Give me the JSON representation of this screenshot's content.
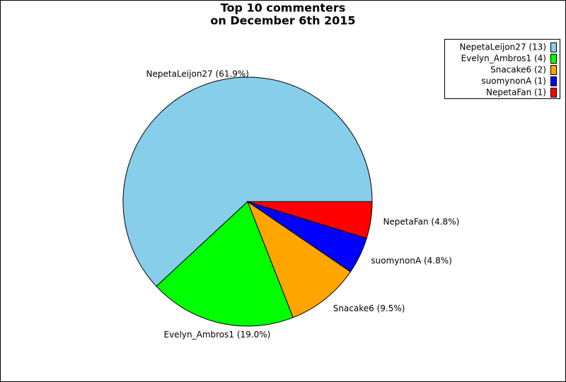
{
  "chart_data": {
    "type": "pie",
    "title": [
      "Top 10 commenters",
      "on December 6th 2015"
    ],
    "categories": [
      "NepetaLeijon27",
      "Evelyn_Ambros1",
      "Snacake6",
      "suomynonA",
      "NepetaFan"
    ],
    "values": [
      13,
      4,
      2,
      1,
      1
    ],
    "colors": [
      "#87ceeb",
      "#00ff00",
      "#ffa500",
      "#0000ff",
      "#ff0000"
    ],
    "value_labels": [
      "NepetaLeijon27 (61.9%)",
      "Evelyn_Ambros1 (19.0%)",
      "Snacake6 (9.5%)",
      "suomynonA (4.8%)",
      "NepetaFan (4.8%)"
    ],
    "legend_labels": [
      "NepetaLeijon27 (13)",
      "Evelyn_Ambros1 (4)",
      "Snacake6 (2)",
      "suomynonA (1)",
      "NepetaFan (1)"
    ],
    "legend": "upper right"
  }
}
